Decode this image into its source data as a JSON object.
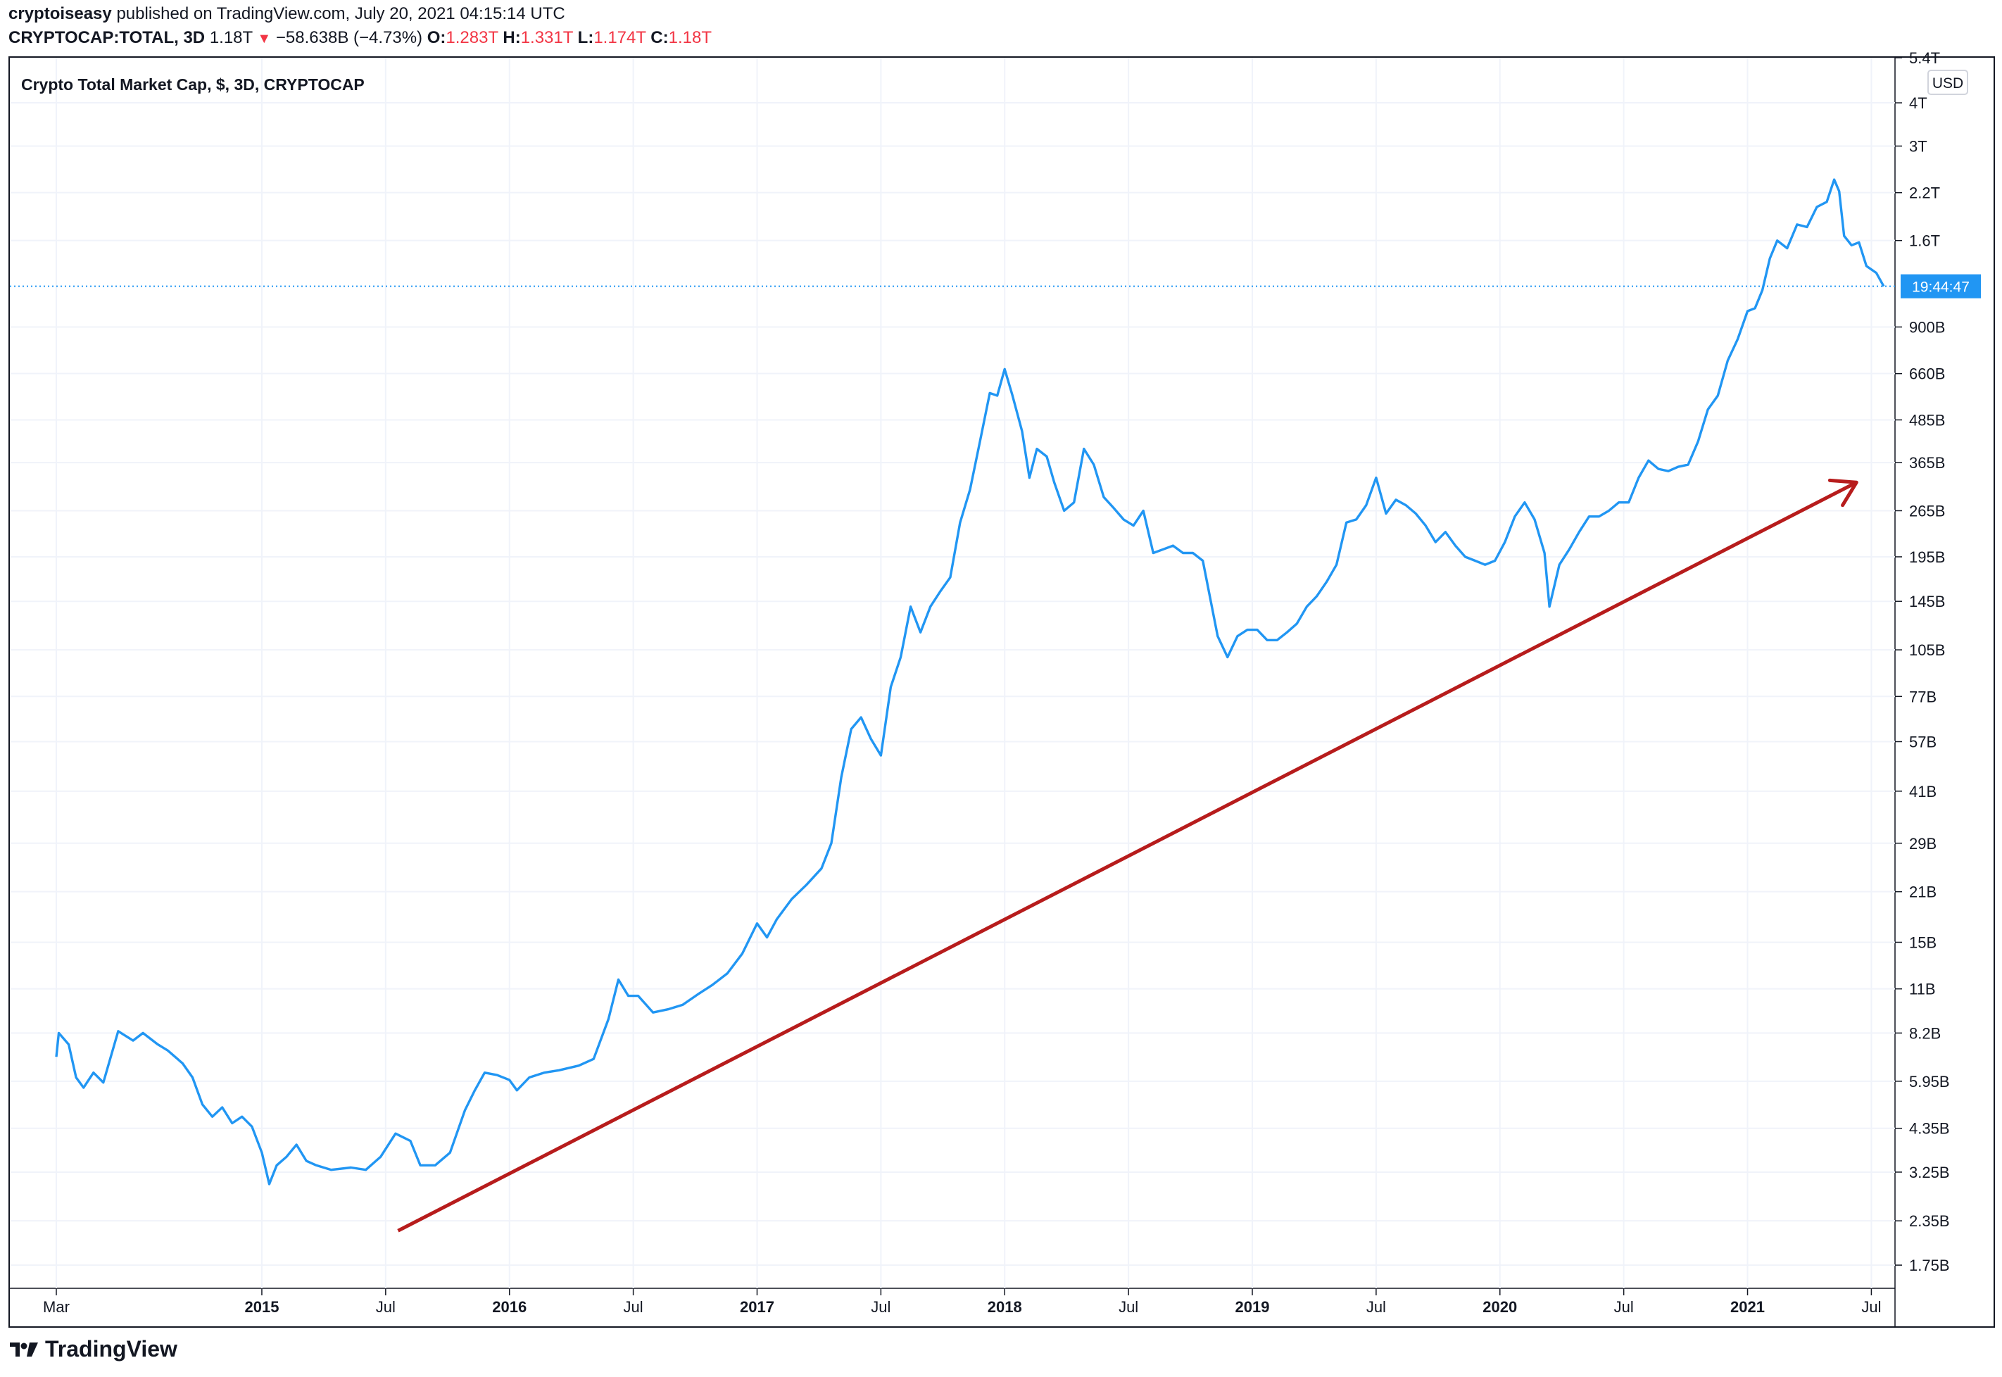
{
  "header": {
    "author": "cryptoiseasy",
    "published_text": "published on TradingView.com, July 20, 2021 04:15:14 UTC",
    "symbol": "CRYPTOCAP:TOTAL, 3D",
    "last": "1.18T",
    "change": "−58.638B (−4.73%)",
    "o_label": "O:",
    "o_value": "1.283T",
    "h_label": "H:",
    "h_value": "1.331T",
    "l_label": "L:",
    "l_value": "1.174T",
    "c_label": "C:",
    "c_value": "1.18T"
  },
  "brand": {
    "name": "TradingView"
  },
  "colors": {
    "line": "#2196f3",
    "trend": "#b71c1c",
    "grid": "#f0f3fa",
    "axis_text": "#131722",
    "badge": "#2196f3"
  },
  "chart_data": {
    "type": "line",
    "title": "Crypto Total Market Cap, $, 3D, CRYPTOCAP",
    "currency": "USD",
    "y_scale": "log",
    "y_range": [
      1500000000,
      5400000000000
    ],
    "y_ticks": [
      {
        "label": "5.4T",
        "value": 5400000000000
      },
      {
        "label": "4T",
        "value": 4000000000000
      },
      {
        "label": "3T",
        "value": 3000000000000
      },
      {
        "label": "2.2T",
        "value": 2200000000000
      },
      {
        "label": "1.6T",
        "value": 1600000000000
      },
      {
        "label": "900B",
        "value": 900000000000
      },
      {
        "label": "660B",
        "value": 660000000000
      },
      {
        "label": "485B",
        "value": 485000000000
      },
      {
        "label": "365B",
        "value": 365000000000
      },
      {
        "label": "265B",
        "value": 265000000000
      },
      {
        "label": "195B",
        "value": 195000000000
      },
      {
        "label": "145B",
        "value": 145000000000
      },
      {
        "label": "105B",
        "value": 105000000000
      },
      {
        "label": "77B",
        "value": 77000000000
      },
      {
        "label": "57B",
        "value": 57000000000
      },
      {
        "label": "41B",
        "value": 41000000000
      },
      {
        "label": "29B",
        "value": 29000000000
      },
      {
        "label": "21B",
        "value": 21000000000
      },
      {
        "label": "15B",
        "value": 15000000000
      },
      {
        "label": "11B",
        "value": 11000000000
      },
      {
        "label": "8.2B",
        "value": 8200000000
      },
      {
        "label": "5.95B",
        "value": 5950000000
      },
      {
        "label": "4.35B",
        "value": 4350000000
      },
      {
        "label": "3.25B",
        "value": 3250000000
      },
      {
        "label": "2.35B",
        "value": 2350000000
      },
      {
        "label": "1.75B",
        "value": 1750000000
      }
    ],
    "x_range": [
      2014.15,
      2021.6
    ],
    "x_ticks": [
      {
        "label": "Mar",
        "t": 2014.17,
        "bold": false
      },
      {
        "label": "2015",
        "t": 2015.0,
        "bold": true
      },
      {
        "label": "Jul",
        "t": 2015.5,
        "bold": false
      },
      {
        "label": "2016",
        "t": 2016.0,
        "bold": true
      },
      {
        "label": "Jul",
        "t": 2016.5,
        "bold": false
      },
      {
        "label": "2017",
        "t": 2017.0,
        "bold": true
      },
      {
        "label": "Jul",
        "t": 2017.5,
        "bold": false
      },
      {
        "label": "2018",
        "t": 2018.0,
        "bold": true
      },
      {
        "label": "Jul",
        "t": 2018.5,
        "bold": false
      },
      {
        "label": "2019",
        "t": 2019.0,
        "bold": true
      },
      {
        "label": "Jul",
        "t": 2019.5,
        "bold": false
      },
      {
        "label": "2020",
        "t": 2020.0,
        "bold": true
      },
      {
        "label": "Jul",
        "t": 2020.5,
        "bold": false
      },
      {
        "label": "2021",
        "t": 2021.0,
        "bold": true
      },
      {
        "label": "Jul",
        "t": 2021.5,
        "bold": false
      }
    ],
    "series": [
      {
        "name": "CRYPTOCAP:TOTAL",
        "unit": "USD (billions)",
        "points": [
          [
            2014.17,
            7.0
          ],
          [
            2014.18,
            8.2
          ],
          [
            2014.22,
            7.6
          ],
          [
            2014.25,
            6.1
          ],
          [
            2014.28,
            5.7
          ],
          [
            2014.32,
            6.3
          ],
          [
            2014.36,
            5.9
          ],
          [
            2014.42,
            8.3
          ],
          [
            2014.48,
            7.8
          ],
          [
            2014.52,
            8.2
          ],
          [
            2014.58,
            7.6
          ],
          [
            2014.62,
            7.3
          ],
          [
            2014.68,
            6.7
          ],
          [
            2014.72,
            6.1
          ],
          [
            2014.76,
            5.1
          ],
          [
            2014.8,
            4.7
          ],
          [
            2014.84,
            5.0
          ],
          [
            2014.88,
            4.5
          ],
          [
            2014.92,
            4.7
          ],
          [
            2014.96,
            4.4
          ],
          [
            2015.0,
            3.7
          ],
          [
            2015.03,
            3.0
          ],
          [
            2015.06,
            3.4
          ],
          [
            2015.1,
            3.6
          ],
          [
            2015.14,
            3.9
          ],
          [
            2015.18,
            3.5
          ],
          [
            2015.22,
            3.4
          ],
          [
            2015.28,
            3.3
          ],
          [
            2015.36,
            3.35
          ],
          [
            2015.42,
            3.3
          ],
          [
            2015.48,
            3.6
          ],
          [
            2015.54,
            4.2
          ],
          [
            2015.6,
            4.0
          ],
          [
            2015.64,
            3.4
          ],
          [
            2015.7,
            3.4
          ],
          [
            2015.76,
            3.7
          ],
          [
            2015.82,
            4.9
          ],
          [
            2015.86,
            5.6
          ],
          [
            2015.9,
            6.3
          ],
          [
            2015.95,
            6.2
          ],
          [
            2016.0,
            6.0
          ],
          [
            2016.03,
            5.6
          ],
          [
            2016.08,
            6.1
          ],
          [
            2016.14,
            6.3
          ],
          [
            2016.2,
            6.4
          ],
          [
            2016.28,
            6.6
          ],
          [
            2016.34,
            6.9
          ],
          [
            2016.4,
            9.0
          ],
          [
            2016.44,
            11.7
          ],
          [
            2016.48,
            10.5
          ],
          [
            2016.52,
            10.5
          ],
          [
            2016.58,
            9.4
          ],
          [
            2016.64,
            9.6
          ],
          [
            2016.7,
            9.9
          ],
          [
            2016.76,
            10.6
          ],
          [
            2016.82,
            11.3
          ],
          [
            2016.88,
            12.2
          ],
          [
            2016.94,
            13.9
          ],
          [
            2017.0,
            17.0
          ],
          [
            2017.04,
            15.5
          ],
          [
            2017.08,
            17.5
          ],
          [
            2017.14,
            20.0
          ],
          [
            2017.2,
            22.0
          ],
          [
            2017.26,
            24.5
          ],
          [
            2017.3,
            29.0
          ],
          [
            2017.34,
            45.0
          ],
          [
            2017.38,
            62.0
          ],
          [
            2017.42,
            67.0
          ],
          [
            2017.46,
            58.0
          ],
          [
            2017.5,
            52.0
          ],
          [
            2017.54,
            82.0
          ],
          [
            2017.58,
            100.0
          ],
          [
            2017.62,
            140.0
          ],
          [
            2017.66,
            118.0
          ],
          [
            2017.7,
            140.0
          ],
          [
            2017.74,
            155.0
          ],
          [
            2017.78,
            170.0
          ],
          [
            2017.82,
            245.0
          ],
          [
            2017.86,
            305.0
          ],
          [
            2017.9,
            420.0
          ],
          [
            2017.94,
            580.0
          ],
          [
            2017.97,
            570.0
          ],
          [
            2018.0,
            680.0
          ],
          [
            2018.03,
            575.0
          ],
          [
            2018.07,
            450.0
          ],
          [
            2018.1,
            330.0
          ],
          [
            2018.13,
            400.0
          ],
          [
            2018.17,
            380.0
          ],
          [
            2018.2,
            320.0
          ],
          [
            2018.24,
            265.0
          ],
          [
            2018.28,
            280.0
          ],
          [
            2018.32,
            400.0
          ],
          [
            2018.36,
            360.0
          ],
          [
            2018.4,
            290.0
          ],
          [
            2018.44,
            270.0
          ],
          [
            2018.48,
            250.0
          ],
          [
            2018.52,
            240.0
          ],
          [
            2018.56,
            265.0
          ],
          [
            2018.6,
            200.0
          ],
          [
            2018.64,
            205.0
          ],
          [
            2018.68,
            210.0
          ],
          [
            2018.72,
            200.0
          ],
          [
            2018.76,
            200.0
          ],
          [
            2018.8,
            190.0
          ],
          [
            2018.86,
            115.0
          ],
          [
            2018.9,
            100.0
          ],
          [
            2018.94,
            115.0
          ],
          [
            2018.98,
            120.0
          ],
          [
            2019.02,
            120.0
          ],
          [
            2019.06,
            112.0
          ],
          [
            2019.1,
            112.0
          ],
          [
            2019.14,
            118.0
          ],
          [
            2019.18,
            125.0
          ],
          [
            2019.22,
            140.0
          ],
          [
            2019.26,
            150.0
          ],
          [
            2019.3,
            165.0
          ],
          [
            2019.34,
            185.0
          ],
          [
            2019.38,
            245.0
          ],
          [
            2019.42,
            250.0
          ],
          [
            2019.46,
            275.0
          ],
          [
            2019.5,
            330.0
          ],
          [
            2019.54,
            260.0
          ],
          [
            2019.58,
            285.0
          ],
          [
            2019.62,
            275.0
          ],
          [
            2019.66,
            260.0
          ],
          [
            2019.7,
            240.0
          ],
          [
            2019.74,
            215.0
          ],
          [
            2019.78,
            230.0
          ],
          [
            2019.82,
            210.0
          ],
          [
            2019.86,
            195.0
          ],
          [
            2019.9,
            190.0
          ],
          [
            2019.94,
            185.0
          ],
          [
            2019.98,
            190.0
          ],
          [
            2020.02,
            215.0
          ],
          [
            2020.06,
            255.0
          ],
          [
            2020.1,
            280.0
          ],
          [
            2020.14,
            250.0
          ],
          [
            2020.18,
            200.0
          ],
          [
            2020.2,
            140.0
          ],
          [
            2020.24,
            185.0
          ],
          [
            2020.28,
            205.0
          ],
          [
            2020.32,
            230.0
          ],
          [
            2020.36,
            255.0
          ],
          [
            2020.4,
            255.0
          ],
          [
            2020.44,
            265.0
          ],
          [
            2020.48,
            280.0
          ],
          [
            2020.52,
            280.0
          ],
          [
            2020.56,
            330.0
          ],
          [
            2020.6,
            370.0
          ],
          [
            2020.64,
            350.0
          ],
          [
            2020.68,
            345.0
          ],
          [
            2020.72,
            355.0
          ],
          [
            2020.76,
            360.0
          ],
          [
            2020.8,
            420.0
          ],
          [
            2020.84,
            520.0
          ],
          [
            2020.88,
            570.0
          ],
          [
            2020.92,
            720.0
          ],
          [
            2020.96,
            830.0
          ],
          [
            2021.0,
            1000.0
          ],
          [
            2021.03,
            1020.0
          ],
          [
            2021.06,
            1150.0
          ],
          [
            2021.09,
            1420.0
          ],
          [
            2021.12,
            1600.0
          ],
          [
            2021.16,
            1520.0
          ],
          [
            2021.2,
            1780.0
          ],
          [
            2021.24,
            1750.0
          ],
          [
            2021.28,
            2000.0
          ],
          [
            2021.32,
            2070.0
          ],
          [
            2021.35,
            2400.0
          ],
          [
            2021.37,
            2220.0
          ],
          [
            2021.39,
            1650.0
          ],
          [
            2021.42,
            1550.0
          ],
          [
            2021.45,
            1580.0
          ],
          [
            2021.48,
            1350.0
          ],
          [
            2021.52,
            1290.0
          ],
          [
            2021.55,
            1180.0
          ]
        ]
      }
    ],
    "trendline": {
      "start": [
        2015.55,
        2.2
      ],
      "end": [
        2021.44,
        320.0
      ],
      "arrow": true
    },
    "last_price_line": {
      "value": 1180.0,
      "style": "dotted"
    },
    "last_price_label": "19:44:47"
  }
}
